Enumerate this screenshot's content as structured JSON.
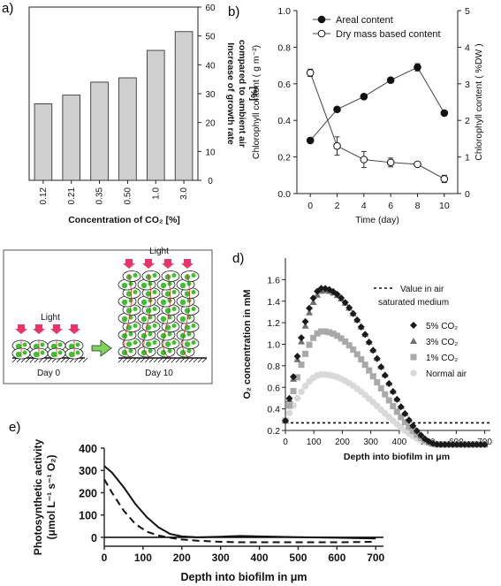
{
  "panels": {
    "a": {
      "label": "a)"
    },
    "b": {
      "label": "b)"
    },
    "c": {
      "label": "c)"
    },
    "d": {
      "label": "d)"
    },
    "e": {
      "label": "e)"
    }
  },
  "chart_data": [
    {
      "panel": "a",
      "type": "bar",
      "categories": [
        "0.12",
        "0.21",
        "0.35",
        "0.50",
        "1.0",
        "3.0"
      ],
      "values": [
        26.5,
        29.5,
        34,
        35.5,
        45,
        51.5
      ],
      "xlabel": "Concentration of CO₂ [%]",
      "ylabel_lines": [
        "Increase of growth rate",
        "compared to ambient air",
        "[%]"
      ],
      "ylim": [
        0,
        60
      ],
      "yticks": [
        0,
        10,
        20,
        30,
        40,
        50,
        60
      ],
      "y_axis_side": "right",
      "bar_color": "#cfcfcf"
    },
    {
      "panel": "b",
      "type": "line",
      "x": [
        0,
        2,
        4,
        6,
        8,
        10
      ],
      "xticks": [
        0,
        2,
        4,
        6,
        8,
        10
      ],
      "xlabel": "Time (day)",
      "ylabel_left": "Chlorophyll content ( g m⁻²)",
      "ylabel_right": "Chlorophyll content ( %DW )",
      "ylim_left": [
        0,
        1.0
      ],
      "yticks_left": [
        "0.0",
        "0.2",
        "0.4",
        "0.6",
        "0.8",
        "1.0"
      ],
      "ylim_right": [
        0,
        5
      ],
      "yticks_right": [
        "0",
        "1",
        "2",
        "3",
        "4",
        "5"
      ],
      "legend_position": "top-right",
      "series": [
        {
          "name": "Areal content",
          "axis": "left",
          "marker": "filled-circle",
          "values": [
            0.29,
            0.46,
            0.53,
            0.62,
            0.69,
            0.44
          ],
          "err": [
            0,
            0,
            0,
            0,
            0.02,
            0
          ]
        },
        {
          "name": "Dry mass based content",
          "axis": "right",
          "marker": "open-circle",
          "values": [
            3.3,
            1.3,
            0.93,
            0.85,
            0.8,
            0.4
          ],
          "err": [
            0.1,
            0.25,
            0.22,
            0.12,
            0,
            0.1
          ]
        }
      ]
    },
    {
      "panel": "c",
      "type": "diagram",
      "light_label_left": "Light",
      "light_label_right": "Light",
      "day_left": "Day 0",
      "day_right": "Day 10"
    },
    {
      "panel": "d",
      "type": "scatter",
      "xlabel": "Depth into biofilm in μm",
      "ylabel": "O₂ concentration in mM",
      "xlim": [
        0,
        720
      ],
      "xticks": [
        0,
        100,
        200,
        300,
        400,
        500,
        600,
        700
      ],
      "ylim": [
        0.2,
        1.8
      ],
      "yticks": [
        "0.2",
        "0.4",
        "0.6",
        "0.8",
        "1.0",
        "1.2",
        "1.4",
        "1.6"
      ],
      "reference": {
        "name_lines": [
          "Value in air",
          "saturated medium"
        ],
        "value": 0.27
      },
      "legend_position": "right",
      "series": [
        {
          "name": "5% CO₂",
          "marker": "diamond",
          "color": "#1a1a1a",
          "peak": 1.52,
          "peak_x": 130
        },
        {
          "name": "3% CO₂",
          "marker": "triangle",
          "color": "#6f6f6f",
          "peak": 1.5,
          "peak_x": 135
        },
        {
          "name": "1% CO₂",
          "marker": "square",
          "color": "#a9a9a9",
          "peak": 1.12,
          "peak_x": 130
        },
        {
          "name": "Normal air",
          "marker": "circle",
          "color": "#d9d9d9",
          "peak": 0.72,
          "peak_x": 130
        }
      ]
    },
    {
      "panel": "e",
      "type": "line",
      "xlabel": "Depth into biofilm in μm",
      "ylabel_lines": [
        "Photosynthetic activity",
        "(μmol L⁻¹ s⁻¹ O₂)"
      ],
      "xlim": [
        0,
        720
      ],
      "xticks": [
        0,
        100,
        200,
        300,
        400,
        500,
        600,
        700
      ],
      "ylim": [
        -40,
        400
      ],
      "yticks": [
        "0",
        "100",
        "200",
        "300",
        "400"
      ],
      "series": [
        {
          "style": "solid",
          "x": [
            0,
            20,
            50,
            80,
            110,
            140,
            170,
            200,
            240,
            300,
            350,
            400,
            500,
            600,
            700
          ],
          "values": [
            320,
            290,
            225,
            150,
            90,
            45,
            15,
            4,
            0,
            3,
            6,
            4,
            1,
            -2,
            -5
          ]
        },
        {
          "style": "dashed",
          "x": [
            0,
            20,
            50,
            80,
            110,
            140,
            170,
            200,
            240,
            300,
            350,
            400,
            500,
            600,
            700
          ],
          "values": [
            260,
            200,
            120,
            60,
            25,
            8,
            -2,
            -10,
            -15,
            -20,
            -22,
            -22,
            -22,
            -22,
            -20
          ]
        }
      ]
    }
  ]
}
